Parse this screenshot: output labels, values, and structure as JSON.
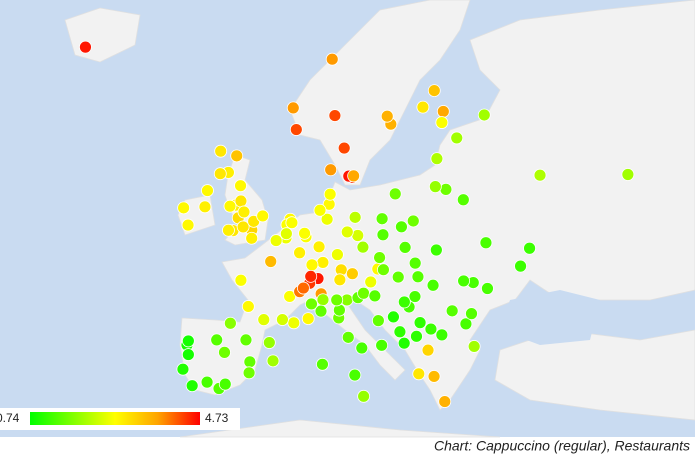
{
  "chart_data": {
    "type": "scatter",
    "title": "Chart: Cappuccino (regular), Restaurants",
    "colorscale": [
      "#00ff00",
      "#80ff00",
      "#ffff00",
      "#ffa500",
      "#ff0000"
    ],
    "colorbar": {
      "min": 0.74,
      "max": 4.73
    },
    "x": [
      -21.9,
      10.4,
      5.3,
      5.7,
      10.75,
      11.97,
      18.07,
      17.6,
      13.0,
      12.57,
      10.2,
      13.2,
      24.94,
      23.76,
      22.27,
      24.75,
      30.3,
      24.1,
      26.7,
      25.28,
      23.9,
      27.56,
      37.6,
      49.1,
      -6.26,
      -5.93,
      -3.19,
      -4.25,
      -2.1,
      -4.2,
      -1.6,
      -2.24,
      -1.55,
      -2.98,
      -1.9,
      -0.13,
      -2.59,
      -3.18,
      -8.47,
      -9.05,
      -1.26,
      0.12,
      -0.14,
      1.3,
      -1.15,
      4.9,
      4.48,
      4.35,
      4.4,
      5.12,
      6.13,
      10.0,
      13.4,
      11.58,
      6.96,
      8.68,
      9.18,
      13.74,
      12.37,
      9.73,
      8.8,
      6.78,
      11.08,
      10.13,
      2.35,
      4.83,
      5.37,
      7.26,
      -0.58,
      1.44,
      -1.55,
      7.75,
      3.06,
      3.88,
      8.54,
      6.14,
      7.45,
      7.59,
      6.63,
      8.95,
      16.37,
      13.04,
      11.4,
      15.44,
      9.19,
      7.68,
      12.5,
      11.25,
      12.33,
      14.27,
      11.34,
      8.93,
      16.87,
      13.36,
      9.12,
      10.99,
      13.77,
      -3.7,
      2.17,
      -0.38,
      -5.98,
      -2.93,
      -9.14,
      -8.61,
      -4.42,
      -0.89,
      -3.6,
      -8.43,
      -8.43,
      -7.93,
      -0.48,
      2.65,
      -4.72,
      21.01,
      19.94,
      18.65,
      16.93,
      17.04,
      19.46,
      14.42,
      16.6,
      17.1,
      19.04,
      14.5,
      15.98,
      20.46,
      18.41,
      16.44,
      23.32,
      26.1,
      23.6,
      21.23,
      28.86,
      30.52,
      24.03,
      30.72,
      36.23,
      21.43,
      19.82,
      19.26,
      22.94,
      23.73,
      28.98,
      27.9,
      25.13,
      21.73,
      14.51,
      21.62,
      21.26,
      27.6,
      28.63,
      24.75,
      19.84,
      21.9,
      35.05
    ],
    "y": [
      64.1,
      63.4,
      60.4,
      58.97,
      59.9,
      57.7,
      59.33,
      59.86,
      55.6,
      55.68,
      56.15,
      55.7,
      60.17,
      61.5,
      60.45,
      59.44,
      59.94,
      56.95,
      58.4,
      54.69,
      54.9,
      53.9,
      55.75,
      55.8,
      53.35,
      54.6,
      55.95,
      55.86,
      57.15,
      57.48,
      54.97,
      53.48,
      53.8,
      53.4,
      52.48,
      51.5,
      51.45,
      51.48,
      51.9,
      53.27,
      51.75,
      52.2,
      50.82,
      52.63,
      52.95,
      52.37,
      51.92,
      50.85,
      51.2,
      52.09,
      49.61,
      53.55,
      52.52,
      48.14,
      50.94,
      50.11,
      48.78,
      51.05,
      51.34,
      52.37,
      53.08,
      51.23,
      49.45,
      54.32,
      48.86,
      45.76,
      43.3,
      43.7,
      44.84,
      43.6,
      47.22,
      48.57,
      50.63,
      43.61,
      47.37,
      46.2,
      46.95,
      47.56,
      46.52,
      46.0,
      48.21,
      47.8,
      47.26,
      47.07,
      45.46,
      45.07,
      41.9,
      43.77,
      45.44,
      40.85,
      44.5,
      44.4,
      41.12,
      38.12,
      39.22,
      45.44,
      45.65,
      40.42,
      41.39,
      39.47,
      37.39,
      43.26,
      38.72,
      41.15,
      36.72,
      41.65,
      37.18,
      41.55,
      40.2,
      37.02,
      38.35,
      39.57,
      41.65,
      52.23,
      50.06,
      54.35,
      52.41,
      51.11,
      51.76,
      50.08,
      49.2,
      48.15,
      47.5,
      46.05,
      45.81,
      44.79,
      43.86,
      43.51,
      42.7,
      44.43,
      46.77,
      45.75,
      47.01,
      50.45,
      49.84,
      46.48,
      49.99,
      42.0,
      41.33,
      42.44,
      40.64,
      37.98,
      41.01,
      43.2,
      35.34,
      38.25,
      35.9,
      47.53,
      48.72,
      47.16,
      44.17,
      42.14,
      45.25,
      43.32,
      48.46
    ],
    "values": [
      4.6,
      3.8,
      3.8,
      4.3,
      4.3,
      4.3,
      3.6,
      3.6,
      4.5,
      4.6,
      3.8,
      3.7,
      3.7,
      3.4,
      3.0,
      2.7,
      2.0,
      2.1,
      2.0,
      1.6,
      1.9,
      1.4,
      2.1,
      2.0,
      2.9,
      2.8,
      2.9,
      3.0,
      3.4,
      3.0,
      2.8,
      2.9,
      3.0,
      2.8,
      3.1,
      3.2,
      3.0,
      2.9,
      2.8,
      2.8,
      3.0,
      3.0,
      2.9,
      2.8,
      2.9,
      2.8,
      2.7,
      2.6,
      2.5,
      2.7,
      2.9,
      2.8,
      2.2,
      3.1,
      2.7,
      2.9,
      2.9,
      2.4,
      2.5,
      2.6,
      2.7,
      2.7,
      2.6,
      2.7,
      3.5,
      2.7,
      2.6,
      2.8,
      2.8,
      2.5,
      2.7,
      2.8,
      2.6,
      2.4,
      4.6,
      4.0,
      4.4,
      4.5,
      4.1,
      3.8,
      2.8,
      3.3,
      3.0,
      2.6,
      1.9,
      1.6,
      1.5,
      1.6,
      1.8,
      1.3,
      1.5,
      1.5,
      1.3,
      1.3,
      1.4,
      1.6,
      1.5,
      1.6,
      1.9,
      1.5,
      1.3,
      1.8,
      1.0,
      0.9,
      1.4,
      1.5,
      1.3,
      0.9,
      0.9,
      1.0,
      1.6,
      2.0,
      1.4,
      1.6,
      1.4,
      1.6,
      1.5,
      1.4,
      1.4,
      2.0,
      1.6,
      1.6,
      1.5,
      1.6,
      1.4,
      1.3,
      1.0,
      1.5,
      1.2,
      1.4,
      1.3,
      1.3,
      1.3,
      1.3,
      1.2,
      1.3,
      1.2,
      1.1,
      1.0,
      1.1,
      3.2,
      3.5,
      2.0,
      1.3,
      3.6,
      3.0,
      1.9,
      1.4,
      1.4,
      1.3,
      1.4,
      1.2,
      1.2,
      1.1,
      1.2
    ]
  }
}
